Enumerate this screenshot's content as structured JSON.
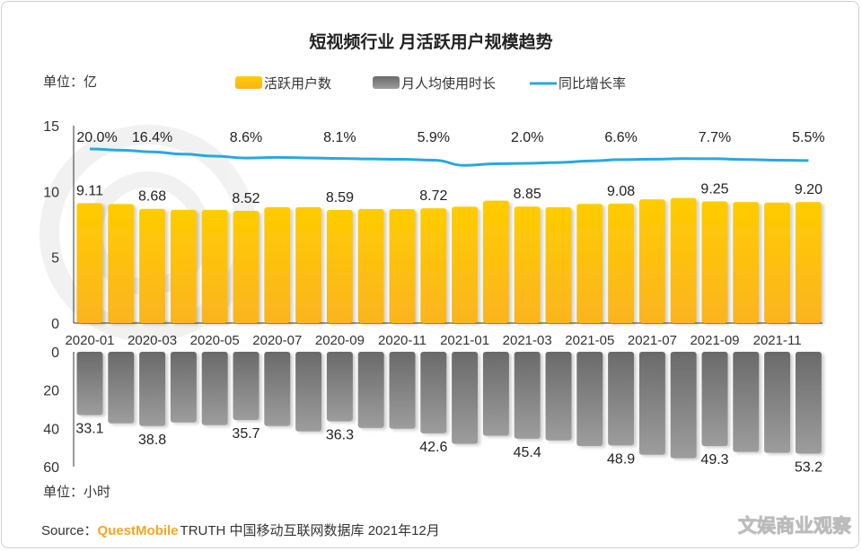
{
  "chart_data": {
    "type": "bar",
    "title": "短视频行业 月活跃用户规模趋势",
    "categories": [
      "2020-01",
      "2020-02",
      "2020-03",
      "2020-04",
      "2020-05",
      "2020-06",
      "2020-07",
      "2020-08",
      "2020-09",
      "2020-10",
      "2020-11",
      "2020-12",
      "2021-01",
      "2021-02",
      "2021-03",
      "2021-04",
      "2021-05",
      "2021-06",
      "2021-07",
      "2021-08",
      "2021-09",
      "2021-10",
      "2021-11",
      "2021-12"
    ],
    "x_tick_labels": [
      "2020-01",
      "2020-03",
      "2020-05",
      "2020-07",
      "2020-09",
      "2020-11",
      "2021-01",
      "2021-03",
      "2021-05",
      "2021-07",
      "2021-09",
      "2021-11"
    ],
    "top_unit": "单位：亿",
    "bottom_unit": "单位：小时",
    "top_ylim": [
      0,
      15
    ],
    "top_yticks": [
      "15",
      "10",
      "5",
      "0"
    ],
    "bottom_ylim": [
      0,
      60
    ],
    "bottom_yticks": [
      "0",
      "20",
      "40",
      "60"
    ],
    "bottom_axis_inverted": true,
    "grid": false,
    "legend_position": "top",
    "series": [
      {
        "name": "活跃用户数",
        "type": "bar",
        "color": "#FFC400",
        "values": [
          9.11,
          9.04,
          8.68,
          8.6,
          8.6,
          8.52,
          8.8,
          8.8,
          8.59,
          8.66,
          8.66,
          8.72,
          8.84,
          9.3,
          8.85,
          8.8,
          9.05,
          9.08,
          9.4,
          9.5,
          9.25,
          9.2,
          9.15,
          9.2
        ],
        "labels": {
          "2020-01": "9.11",
          "2020-03": "8.68",
          "2020-06": "8.52",
          "2020-09": "8.59",
          "2020-12": "8.72",
          "2021-03": "8.85",
          "2021-06": "9.08",
          "2021-09": "9.25",
          "2021-12": "9.20"
        }
      },
      {
        "name": "月人均使用时长",
        "type": "bar",
        "color": "#7a7a7a",
        "values": [
          33.1,
          37.4,
          38.8,
          36.9,
          38.3,
          35.7,
          38.8,
          41.6,
          36.3,
          39.8,
          40.2,
          42.6,
          48.1,
          43.9,
          45.4,
          46.3,
          49.2,
          48.9,
          53.8,
          55.6,
          49.3,
          52.3,
          52.8,
          53.2
        ],
        "labels": {
          "2020-01": "33.1",
          "2020-03": "38.8",
          "2020-06": "35.7",
          "2020-09": "36.3",
          "2020-12": "42.6",
          "2021-03": "45.4",
          "2021-06": "48.9",
          "2021-09": "49.3",
          "2021-12": "53.2"
        }
      },
      {
        "name": "同比增长率",
        "type": "line",
        "color": "#29A8DF",
        "values": [
          20.0,
          18.5,
          16.4,
          13.5,
          11.0,
          8.6,
          9.5,
          8.8,
          8.1,
          7.5,
          7.0,
          5.9,
          -0.5,
          1.5,
          2.0,
          3.0,
          5.0,
          6.6,
          7.2,
          7.9,
          7.7,
          6.8,
          6.0,
          5.5
        ],
        "labels": {
          "2020-01": "20.0%",
          "2020-03": "16.4%",
          "2020-06": "8.6%",
          "2020-09": "8.1%",
          "2020-12": "5.9%",
          "2021-03": "2.0%",
          "2021-06": "6.6%",
          "2021-09": "7.7%",
          "2021-12": "5.5%"
        }
      }
    ],
    "source_prefix": "Source：",
    "source_brand": "QuestMobile",
    "source_rest": "TRUTH 中国移动互联网数据库 2021年12月",
    "watermark": "文娱商业观察"
  }
}
